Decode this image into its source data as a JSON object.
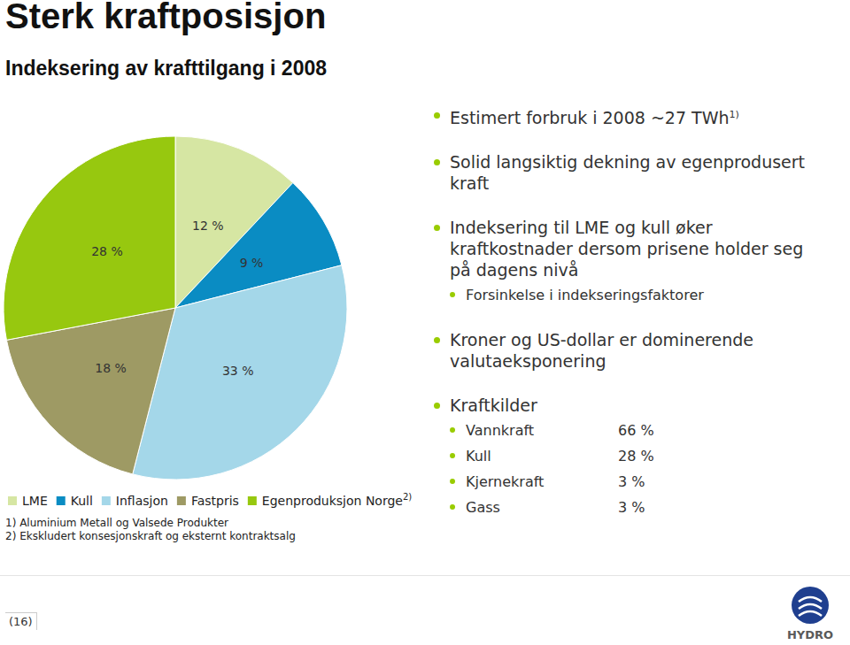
{
  "header": {
    "title": "Sterk kraftposisjon",
    "subtitle": "Indeksering av krafttilgang i 2008"
  },
  "chart_data": {
    "type": "pie",
    "categories": [
      "LME",
      "Kull",
      "Inflasjon",
      "Fastpris",
      "Egenproduksjon Norge 2)"
    ],
    "values": [
      12,
      9,
      33,
      18,
      28
    ],
    "value_labels": [
      "12 %",
      "9 %",
      "33 %",
      "18 %",
      "28 %"
    ],
    "colors": [
      "#d6e6a3",
      "#0a8cc3",
      "#a4d7e9",
      "#9e9a64",
      "#97c80f"
    ],
    "data_labels": true,
    "legend": "bottom"
  },
  "footnotes": [
    "1) Aluminium Metall og Valsede Produkter",
    "2) Ekskludert konsesjonskraft og eksternt kontraktsalg"
  ],
  "bullets": [
    {
      "text": "Estimert forbruk i 2008 ~27 TWh",
      "note": "1)"
    },
    {
      "text": "Solid langsiktig dekning av egenprodusert kraft"
    },
    {
      "text": "Indeksering til LME og kull øker kraftkostnader dersom prisene holder seg på dagens nivå",
      "sub": [
        {
          "label": "Forsinkelse i indekseringsfaktorer"
        }
      ]
    },
    {
      "text": "Kroner og US-dollar er dominerende valutaeksponering"
    },
    {
      "text": "Kraftkilder",
      "sub": [
        {
          "label": "Vannkraft",
          "value": "66 %"
        },
        {
          "label": "Kull",
          "value": "28 %"
        },
        {
          "label": "Kjernekraft",
          "value": "3 %"
        },
        {
          "label": "Gass",
          "value": "3 %"
        }
      ]
    }
  ],
  "page_number": "(16)",
  "logo": "HYDRO"
}
